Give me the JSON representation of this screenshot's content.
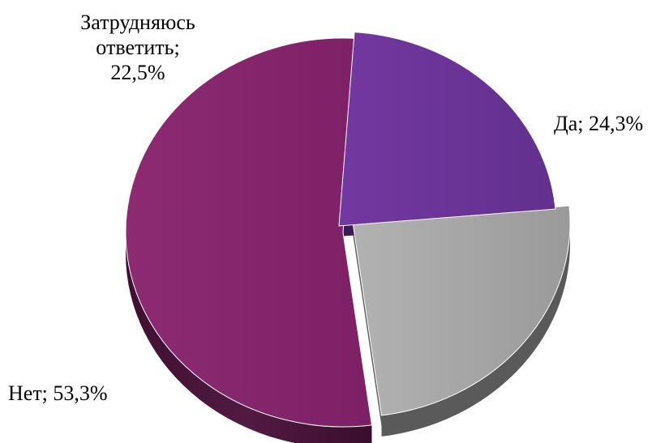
{
  "chart_data": {
    "type": "pie",
    "slices": [
      {
        "label": "Да",
        "value_text": "24,3%",
        "value": 24.3,
        "color": "#a3a3a3",
        "side_color": "#5a5a5a"
      },
      {
        "label": "Нет",
        "value_text": "53,3%",
        "value": 53.3,
        "color": "#842469",
        "side_color": "#4a1538"
      },
      {
        "label": "Затрудняюсь ответить",
        "value_text": "22,5%",
        "value": 22.5,
        "color": "#6a3296",
        "side_color": "#3a1b55"
      }
    ],
    "labels": {
      "da": "Да; 24,3%",
      "net": "Нет; 53,3%",
      "zat_line1": "Затрудняюсь",
      "zat_line2": "ответить;",
      "zat_line3": "22,5%"
    },
    "style": "3d-exploded"
  }
}
